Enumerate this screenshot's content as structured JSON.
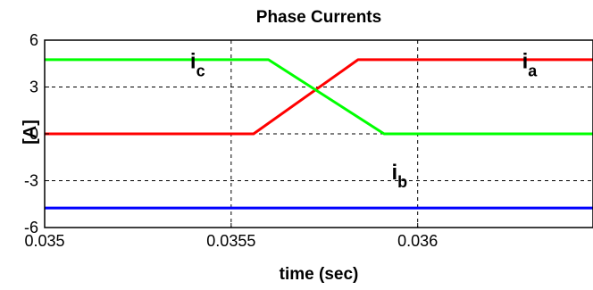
{
  "chart_data": {
    "type": "line",
    "title": "Phase Currents",
    "xlabel": "time (sec)",
    "ylabel": "[A]",
    "xlim": [
      0.035,
      0.03647
    ],
    "ylim": [
      -6,
      6
    ],
    "xticks": [
      {
        "value": 0.035,
        "label": "0.035"
      },
      {
        "value": 0.0355,
        "label": "0.0355"
      },
      {
        "value": 0.036,
        "label": "0.036"
      }
    ],
    "yticks": [
      {
        "value": 6,
        "label": "6"
      },
      {
        "value": 3,
        "label": "3"
      },
      {
        "value": 0,
        "label": "0"
      },
      {
        "value": -3,
        "label": "-3"
      },
      {
        "value": -6,
        "label": "-6"
      }
    ],
    "grid": true,
    "series": [
      {
        "name": "ia",
        "label_main": "i",
        "label_sub": "a",
        "label_at": {
          "x": 0.03628,
          "y": 4.2
        },
        "color": "#ff0000",
        "x": [
          0.035,
          0.03556,
          0.03584,
          0.03647
        ],
        "y": [
          0,
          0,
          4.75,
          4.75
        ]
      },
      {
        "name": "ib",
        "label_main": "i",
        "label_sub": "b",
        "label_at": {
          "x": 0.03593,
          "y": -2.9
        },
        "color": "#0000ff",
        "x": [
          0.035,
          0.03647
        ],
        "y": [
          -4.75,
          -4.75
        ]
      },
      {
        "name": "ic",
        "label_main": "i",
        "label_sub": "c",
        "label_at": {
          "x": 0.03539,
          "y": 4.2
        },
        "color": "#00ff00",
        "x": [
          0.035,
          0.0356,
          0.03591,
          0.03647
        ],
        "y": [
          4.75,
          4.75,
          0,
          0
        ]
      }
    ]
  }
}
